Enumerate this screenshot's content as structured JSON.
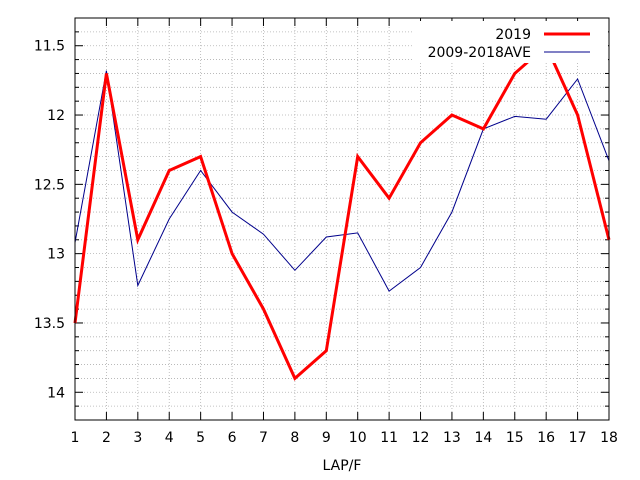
{
  "chart_data": {
    "type": "line",
    "title": "",
    "xlabel": "LAP/F",
    "ylabel": "",
    "x": [
      1,
      2,
      3,
      4,
      5,
      6,
      7,
      8,
      9,
      10,
      11,
      12,
      13,
      14,
      15,
      16,
      17,
      18
    ],
    "xlim": [
      1,
      18
    ],
    "ylim": [
      11.3,
      14.2
    ],
    "y_reversed": true,
    "y_ticks": [
      11.5,
      12,
      12.5,
      13,
      13.5,
      14
    ],
    "y_tick_labels": [
      "11.5",
      "12",
      "12.5",
      "13",
      "13.5",
      "14"
    ],
    "x_tick_labels": [
      "1",
      "2",
      "3",
      "4",
      "5",
      "6",
      "7",
      "8",
      "9",
      "10",
      "11",
      "12",
      "13",
      "14",
      "15",
      "16",
      "17",
      "18"
    ],
    "grid": true,
    "legend_position": "top-right",
    "series": [
      {
        "name": "2019",
        "color": "#ff0000",
        "values": [
          13.5,
          11.7,
          12.9,
          12.4,
          12.3,
          13.0,
          13.4,
          13.9,
          13.7,
          12.3,
          12.6,
          12.2,
          12.0,
          12.1,
          11.7,
          11.5,
          12.0,
          12.9
        ]
      },
      {
        "name": "2009-2018AVE",
        "color": "#00008b",
        "values": [
          12.92,
          11.68,
          13.23,
          12.75,
          12.4,
          12.7,
          12.86,
          13.12,
          12.88,
          12.85,
          13.27,
          13.1,
          12.7,
          12.1,
          12.01,
          12.03,
          11.74,
          12.33
        ]
      }
    ]
  }
}
